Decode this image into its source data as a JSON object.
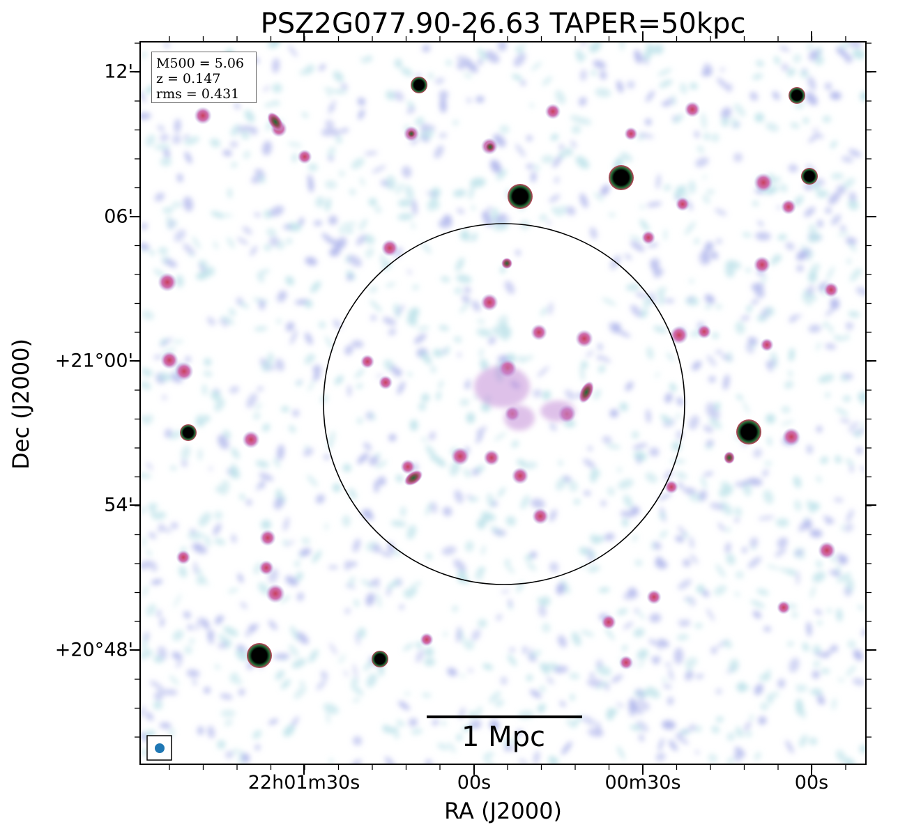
{
  "figure": {
    "title": "PSZ2G077.90-26.63 TAPER=50kpc",
    "xlabel": "RA (J2000)",
    "ylabel": "Dec (J2000)",
    "xticks": [
      "22h01m30s",
      "00s",
      "00m30s",
      "00s"
    ],
    "yticks": [
      "12'",
      "06'",
      "+21°00'",
      "54'",
      "+20°48'"
    ],
    "info": {
      "mass": "M500 = 5.06",
      "redshift": "z = 0.147",
      "rms": "rms = 0.431"
    },
    "scalebar_label": "1 Mpc",
    "colors": {
      "noise_light": "#bfe3ea",
      "noise_mid": "#b3b9ec",
      "emission_pink": "#cf6fb0",
      "emission_red": "#c9405e",
      "emission_green": "#1f6b34",
      "source_black": "#000000",
      "beam": "#1f77b4",
      "circle": "#000000"
    },
    "sources": [
      {
        "ra_pix": 601,
        "dec_pix": 122,
        "kind": "compact"
      },
      {
        "ra_pix": 1143,
        "dec_pix": 137,
        "kind": "compact"
      },
      {
        "ra_pix": 891,
        "dec_pix": 255,
        "kind": "bright"
      },
      {
        "ra_pix": 746,
        "dec_pix": 282,
        "kind": "bright"
      },
      {
        "ra_pix": 1161,
        "dec_pix": 253,
        "kind": "compact"
      },
      {
        "ra_pix": 1074,
        "dec_pix": 620,
        "kind": "bright"
      },
      {
        "ra_pix": 270,
        "dec_pix": 621,
        "kind": "compact"
      },
      {
        "ra_pix": 372,
        "dec_pix": 941,
        "kind": "bright"
      },
      {
        "ra_pix": 545,
        "dec_pix": 946,
        "kind": "compact"
      }
    ]
  }
}
